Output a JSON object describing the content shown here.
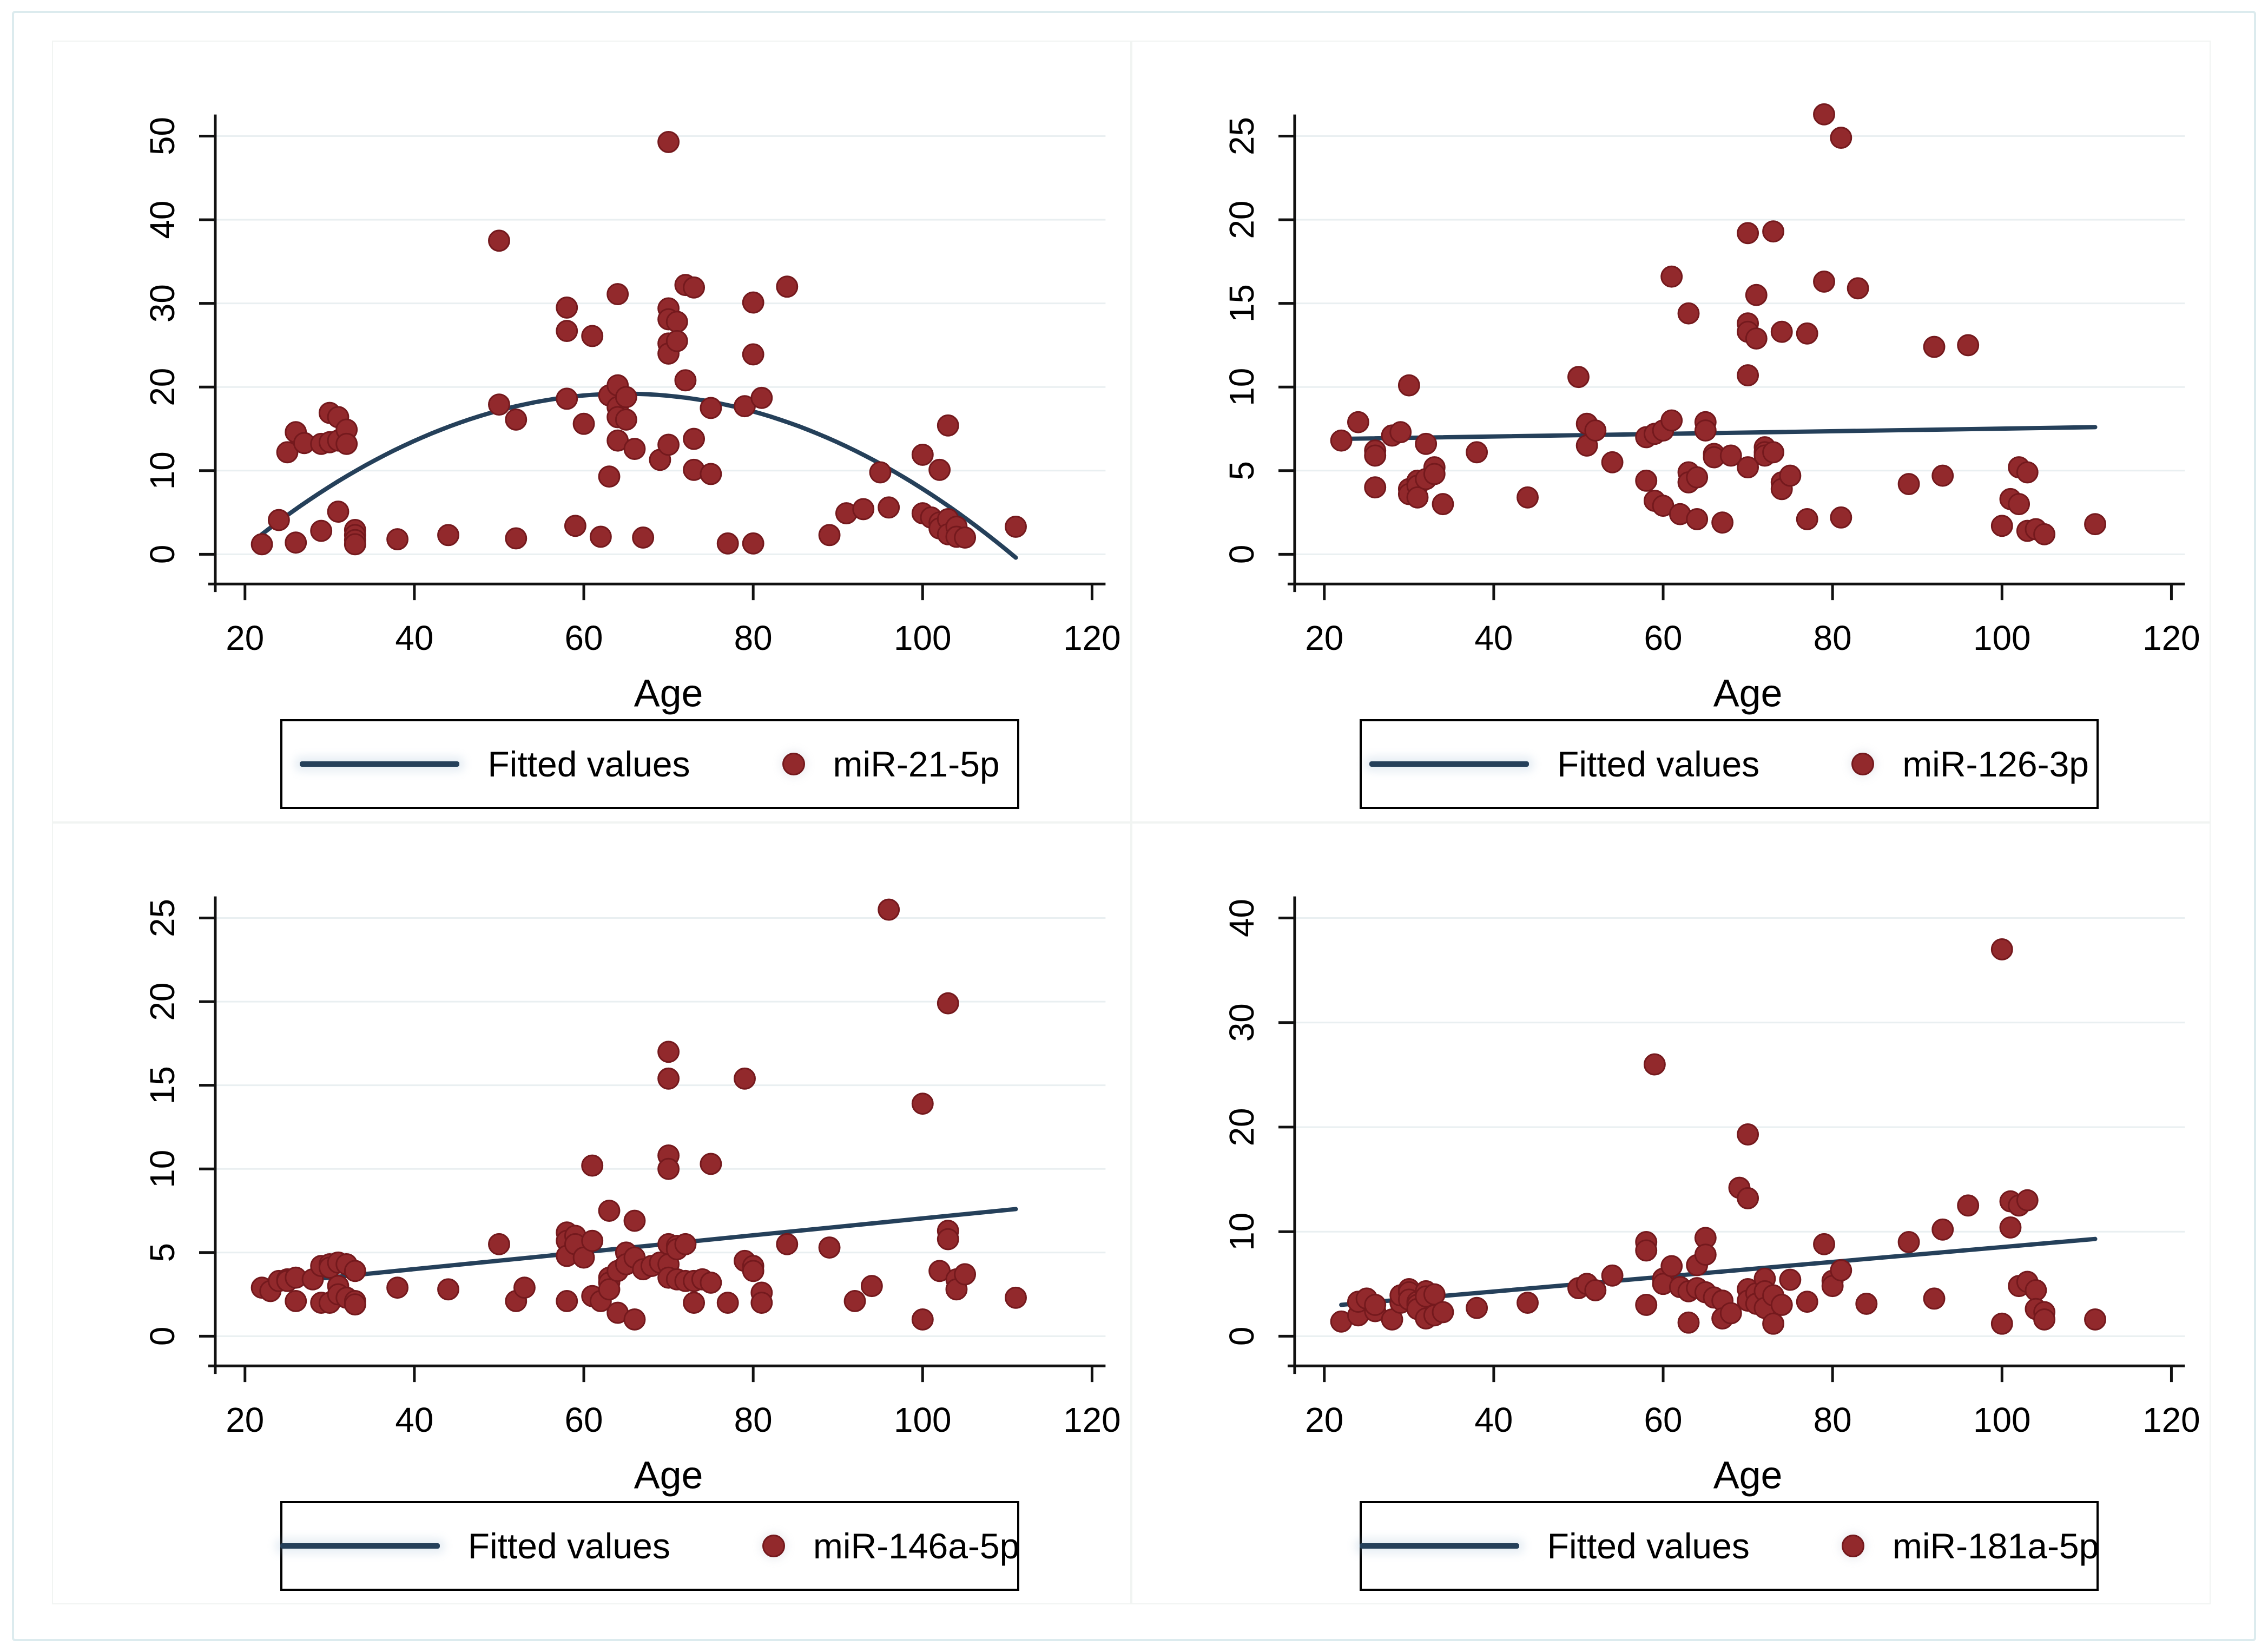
{
  "figure": {
    "x_axis_label": "Age",
    "legend_line_label": "Fitted values",
    "colors": {
      "dot": "#92292c",
      "dot_edge": "#74191d",
      "line": "#25405a",
      "grid": "#e9eff1",
      "axis": "#111111",
      "frame": "#dcebee"
    }
  },
  "chart_data": [
    {
      "type": "scatter",
      "position": "top-left",
      "name": "miR-21-5p",
      "xlabel": "Age",
      "xticks": [
        20,
        40,
        60,
        80,
        100,
        120
      ],
      "yticks": [
        0,
        10,
        20,
        30,
        40,
        50
      ],
      "xlim": [
        20,
        120
      ],
      "ylim": [
        0,
        50
      ],
      "legend": {
        "line": "Fitted values",
        "marker": "miR-21-5p"
      },
      "fit": {
        "type": "quadratic",
        "points": [
          [
            22,
            2.4
          ],
          [
            65,
            19.2
          ],
          [
            111,
            -0.4
          ]
        ]
      },
      "points": [
        [
          22,
          1.2
        ],
        [
          24,
          4.1
        ],
        [
          25,
          12.2
        ],
        [
          26,
          14.6
        ],
        [
          26,
          1.4
        ],
        [
          27,
          13.3
        ],
        [
          29,
          13.2
        ],
        [
          29,
          2.8
        ],
        [
          30,
          16.9
        ],
        [
          30,
          13.4
        ],
        [
          31,
          16.4
        ],
        [
          31,
          13.6
        ],
        [
          31,
          5.1
        ],
        [
          32,
          14.9
        ],
        [
          32,
          13.2
        ],
        [
          33,
          2.9
        ],
        [
          33,
          2.3
        ],
        [
          33,
          1.7
        ],
        [
          33,
          1.2
        ],
        [
          38,
          1.8
        ],
        [
          44,
          2.3
        ],
        [
          50,
          37.5
        ],
        [
          50,
          17.9
        ],
        [
          52,
          16.1
        ],
        [
          52,
          1.9
        ],
        [
          58,
          29.5
        ],
        [
          58,
          26.7
        ],
        [
          58,
          18.6
        ],
        [
          59,
          3.4
        ],
        [
          60,
          15.6
        ],
        [
          61,
          26.1
        ],
        [
          62,
          2.1
        ],
        [
          63,
          19.0
        ],
        [
          63,
          9.3
        ],
        [
          64,
          31.1
        ],
        [
          64,
          20.2
        ],
        [
          64,
          17.6
        ],
        [
          64,
          16.4
        ],
        [
          64,
          13.6
        ],
        [
          65,
          18.8
        ],
        [
          65,
          16.1
        ],
        [
          66,
          12.6
        ],
        [
          67,
          2.0
        ],
        [
          69,
          11.3
        ],
        [
          70,
          49.3
        ],
        [
          70,
          29.4
        ],
        [
          70,
          28.1
        ],
        [
          70,
          25.2
        ],
        [
          70,
          24.0
        ],
        [
          70,
          13.1
        ],
        [
          71,
          27.8
        ],
        [
          71,
          25.5
        ],
        [
          72,
          32.2
        ],
        [
          72,
          20.8
        ],
        [
          73,
          31.9
        ],
        [
          73,
          13.8
        ],
        [
          73,
          10.1
        ],
        [
          75,
          17.5
        ],
        [
          75,
          9.6
        ],
        [
          77,
          1.3
        ],
        [
          79,
          17.7
        ],
        [
          80,
          30.1
        ],
        [
          80,
          23.9
        ],
        [
          80,
          1.3
        ],
        [
          81,
          18.7
        ],
        [
          84,
          32.0
        ],
        [
          89,
          2.3
        ],
        [
          91,
          4.9
        ],
        [
          93,
          5.4
        ],
        [
          95,
          9.8
        ],
        [
          96,
          5.6
        ],
        [
          100,
          11.9
        ],
        [
          100,
          4.9
        ],
        [
          101,
          4.4
        ],
        [
          102,
          10.1
        ],
        [
          102,
          3.8
        ],
        [
          102,
          3.1
        ],
        [
          103,
          15.4
        ],
        [
          103,
          4.2
        ],
        [
          103,
          2.4
        ],
        [
          104,
          3.3
        ],
        [
          104,
          2.1
        ],
        [
          105,
          2.0
        ],
        [
          111,
          3.3
        ]
      ]
    },
    {
      "type": "scatter",
      "position": "top-right",
      "name": "miR-126-3p",
      "xlabel": "Age",
      "xticks": [
        20,
        40,
        60,
        80,
        100,
        120
      ],
      "yticks": [
        0,
        5,
        10,
        15,
        20,
        25
      ],
      "xlim": [
        20,
        120
      ],
      "ylim": [
        0,
        25
      ],
      "legend": {
        "line": "Fitted values",
        "marker": "miR-126-3p"
      },
      "fit": {
        "type": "linear",
        "points": [
          [
            22,
            6.9
          ],
          [
            111,
            7.6
          ]
        ]
      },
      "points": [
        [
          22,
          6.8
        ],
        [
          24,
          7.9
        ],
        [
          26,
          6.2
        ],
        [
          26,
          5.9
        ],
        [
          26,
          4.0
        ],
        [
          28,
          7.1
        ],
        [
          29,
          7.3
        ],
        [
          30,
          10.1
        ],
        [
          30,
          3.9
        ],
        [
          30,
          3.6
        ],
        [
          31,
          4.4
        ],
        [
          31,
          4.1
        ],
        [
          31,
          3.4
        ],
        [
          32,
          6.6
        ],
        [
          32,
          4.5
        ],
        [
          33,
          5.2
        ],
        [
          33,
          4.8
        ],
        [
          34,
          3.0
        ],
        [
          38,
          6.1
        ],
        [
          44,
          3.4
        ],
        [
          50,
          10.6
        ],
        [
          51,
          7.8
        ],
        [
          51,
          6.5
        ],
        [
          52,
          7.4
        ],
        [
          54,
          5.5
        ],
        [
          58,
          7.0
        ],
        [
          58,
          4.4
        ],
        [
          59,
          7.2
        ],
        [
          59,
          3.2
        ],
        [
          60,
          7.4
        ],
        [
          60,
          2.9
        ],
        [
          61,
          16.6
        ],
        [
          61,
          8.0
        ],
        [
          62,
          2.4
        ],
        [
          63,
          14.4
        ],
        [
          63,
          4.9
        ],
        [
          63,
          4.3
        ],
        [
          64,
          4.6
        ],
        [
          64,
          2.1
        ],
        [
          65,
          7.9
        ],
        [
          65,
          7.4
        ],
        [
          66,
          6.0
        ],
        [
          66,
          5.8
        ],
        [
          67,
          1.9
        ],
        [
          68,
          5.9
        ],
        [
          70,
          19.2
        ],
        [
          70,
          13.8
        ],
        [
          70,
          13.3
        ],
        [
          70,
          10.7
        ],
        [
          70,
          5.2
        ],
        [
          71,
          15.5
        ],
        [
          71,
          12.9
        ],
        [
          72,
          6.4
        ],
        [
          72,
          6.1
        ],
        [
          72,
          5.9
        ],
        [
          73,
          19.3
        ],
        [
          73,
          6.1
        ],
        [
          74,
          13.3
        ],
        [
          74,
          4.3
        ],
        [
          74,
          3.9
        ],
        [
          75,
          4.7
        ],
        [
          77,
          13.2
        ],
        [
          77,
          2.1
        ],
        [
          79,
          26.3
        ],
        [
          79,
          16.3
        ],
        [
          81,
          24.9
        ],
        [
          81,
          2.2
        ],
        [
          83,
          15.9
        ],
        [
          89,
          4.2
        ],
        [
          92,
          12.4
        ],
        [
          93,
          4.7
        ],
        [
          96,
          12.5
        ],
        [
          100,
          1.7
        ],
        [
          101,
          3.3
        ],
        [
          102,
          5.2
        ],
        [
          102,
          3.0
        ],
        [
          103,
          4.9
        ],
        [
          103,
          1.4
        ],
        [
          104,
          1.5
        ],
        [
          105,
          1.2
        ],
        [
          111,
          1.8
        ]
      ]
    },
    {
      "type": "scatter",
      "position": "bottom-left",
      "name": "miR-146a-5p",
      "xlabel": "Age",
      "xticks": [
        20,
        40,
        60,
        80,
        100,
        120
      ],
      "yticks": [
        0,
        5,
        10,
        15,
        20,
        25
      ],
      "xlim": [
        20,
        120
      ],
      "ylim": [
        0,
        25
      ],
      "legend": {
        "line": "Fitted values",
        "marker": "miR-146a-5p"
      },
      "fit": {
        "type": "linear",
        "points": [
          [
            22,
            3.1
          ],
          [
            111,
            7.6
          ]
        ]
      },
      "points": [
        [
          22,
          2.9
        ],
        [
          23,
          2.7
        ],
        [
          24,
          3.3
        ],
        [
          25,
          3.4
        ],
        [
          25,
          3.3
        ],
        [
          26,
          3.5
        ],
        [
          26,
          2.1
        ],
        [
          28,
          3.4
        ],
        [
          29,
          4.2
        ],
        [
          29,
          2.0
        ],
        [
          30,
          4.3
        ],
        [
          30,
          4.1
        ],
        [
          30,
          2.0
        ],
        [
          31,
          4.4
        ],
        [
          31,
          3.0
        ],
        [
          31,
          2.5
        ],
        [
          32,
          4.3
        ],
        [
          32,
          2.3
        ],
        [
          33,
          3.9
        ],
        [
          33,
          2.1
        ],
        [
          33,
          1.9
        ],
        [
          38,
          2.9
        ],
        [
          44,
          2.8
        ],
        [
          50,
          5.5
        ],
        [
          52,
          2.1
        ],
        [
          53,
          2.9
        ],
        [
          58,
          6.2
        ],
        [
          58,
          5.7
        ],
        [
          58,
          4.8
        ],
        [
          58,
          2.1
        ],
        [
          59,
          6.0
        ],
        [
          59,
          5.5
        ],
        [
          60,
          4.7
        ],
        [
          61,
          10.2
        ],
        [
          61,
          5.7
        ],
        [
          61,
          2.4
        ],
        [
          62,
          2.1
        ],
        [
          63,
          7.5
        ],
        [
          63,
          3.5
        ],
        [
          63,
          3.2
        ],
        [
          63,
          2.8
        ],
        [
          64,
          3.9
        ],
        [
          64,
          1.4
        ],
        [
          65,
          5.0
        ],
        [
          65,
          4.3
        ],
        [
          66,
          6.9
        ],
        [
          66,
          4.7
        ],
        [
          66,
          1.0
        ],
        [
          67,
          4.0
        ],
        [
          68,
          4.2
        ],
        [
          69,
          4.4
        ],
        [
          70,
          17.0
        ],
        [
          70,
          15.4
        ],
        [
          70,
          10.8
        ],
        [
          70,
          10.0
        ],
        [
          70,
          5.5
        ],
        [
          70,
          4.3
        ],
        [
          70,
          3.5
        ],
        [
          71,
          5.4
        ],
        [
          71,
          5.2
        ],
        [
          71,
          3.4
        ],
        [
          72,
          5.5
        ],
        [
          72,
          3.3
        ],
        [
          73,
          3.3
        ],
        [
          73,
          2.0
        ],
        [
          74,
          3.4
        ],
        [
          75,
          10.3
        ],
        [
          75,
          3.2
        ],
        [
          77,
          2.0
        ],
        [
          79,
          15.4
        ],
        [
          79,
          4.5
        ],
        [
          80,
          4.2
        ],
        [
          80,
          3.9
        ],
        [
          81,
          2.6
        ],
        [
          81,
          2.0
        ],
        [
          84,
          5.5
        ],
        [
          89,
          5.3
        ],
        [
          92,
          2.1
        ],
        [
          94,
          3.0
        ],
        [
          96,
          25.5
        ],
        [
          100,
          13.9
        ],
        [
          100,
          1.0
        ],
        [
          102,
          3.9
        ],
        [
          103,
          19.9
        ],
        [
          103,
          6.3
        ],
        [
          103,
          5.8
        ],
        [
          104,
          3.4
        ],
        [
          104,
          2.8
        ],
        [
          105,
          3.7
        ],
        [
          111,
          2.3
        ]
      ]
    },
    {
      "type": "scatter",
      "position": "bottom-right",
      "name": "miR-181a-5p",
      "xlabel": "Age",
      "xticks": [
        20,
        40,
        60,
        80,
        100,
        120
      ],
      "yticks": [
        0,
        10,
        20,
        30,
        40
      ],
      "xlim": [
        20,
        120
      ],
      "ylim": [
        0,
        40
      ],
      "legend": {
        "line": "Fitted values",
        "marker": "miR-181a-5p"
      },
      "fit": {
        "type": "linear",
        "points": [
          [
            22,
            3.0
          ],
          [
            111,
            9.3
          ]
        ]
      },
      "points": [
        [
          22,
          1.4
        ],
        [
          24,
          2.0
        ],
        [
          24,
          3.3
        ],
        [
          25,
          3.6
        ],
        [
          26,
          2.4
        ],
        [
          26,
          3.0
        ],
        [
          28,
          1.6
        ],
        [
          29,
          3.2
        ],
        [
          29,
          3.9
        ],
        [
          30,
          4.5
        ],
        [
          30,
          4.2
        ],
        [
          30,
          3.5
        ],
        [
          31,
          3.3
        ],
        [
          31,
          3.0
        ],
        [
          31,
          2.6
        ],
        [
          32,
          4.3
        ],
        [
          32,
          3.8
        ],
        [
          32,
          1.7
        ],
        [
          33,
          4.0
        ],
        [
          33,
          2.0
        ],
        [
          34,
          2.3
        ],
        [
          38,
          2.7
        ],
        [
          44,
          3.2
        ],
        [
          50,
          4.6
        ],
        [
          51,
          5.0
        ],
        [
          52,
          4.4
        ],
        [
          54,
          5.8
        ],
        [
          58,
          9.0
        ],
        [
          58,
          8.2
        ],
        [
          58,
          3.0
        ],
        [
          59,
          26.0
        ],
        [
          60,
          5.5
        ],
        [
          60,
          5.0
        ],
        [
          61,
          6.7
        ],
        [
          62,
          4.7
        ],
        [
          63,
          4.3
        ],
        [
          63,
          1.3
        ],
        [
          64,
          6.8
        ],
        [
          64,
          4.6
        ],
        [
          65,
          9.4
        ],
        [
          65,
          7.8
        ],
        [
          65,
          4.2
        ],
        [
          66,
          3.7
        ],
        [
          67,
          3.4
        ],
        [
          67,
          1.7
        ],
        [
          68,
          2.2
        ],
        [
          69,
          14.2
        ],
        [
          70,
          19.3
        ],
        [
          70,
          13.2
        ],
        [
          70,
          4.5
        ],
        [
          70,
          3.4
        ],
        [
          71,
          4.1
        ],
        [
          71,
          3.1
        ],
        [
          72,
          5.5
        ],
        [
          72,
          4.3
        ],
        [
          72,
          2.7
        ],
        [
          73,
          3.9
        ],
        [
          73,
          1.2
        ],
        [
          74,
          3.0
        ],
        [
          75,
          5.4
        ],
        [
          77,
          3.3
        ],
        [
          79,
          8.8
        ],
        [
          80,
          5.3
        ],
        [
          80,
          4.8
        ],
        [
          81,
          6.3
        ],
        [
          84,
          3.1
        ],
        [
          89,
          9.0
        ],
        [
          92,
          3.6
        ],
        [
          93,
          10.2
        ],
        [
          96,
          12.5
        ],
        [
          100,
          37.0
        ],
        [
          100,
          1.2
        ],
        [
          101,
          12.9
        ],
        [
          101,
          10.4
        ],
        [
          102,
          12.5
        ],
        [
          102,
          4.8
        ],
        [
          103,
          13.0
        ],
        [
          103,
          5.2
        ],
        [
          104,
          4.4
        ],
        [
          104,
          2.6
        ],
        [
          105,
          2.3
        ],
        [
          105,
          1.6
        ],
        [
          111,
          1.6
        ]
      ]
    }
  ]
}
